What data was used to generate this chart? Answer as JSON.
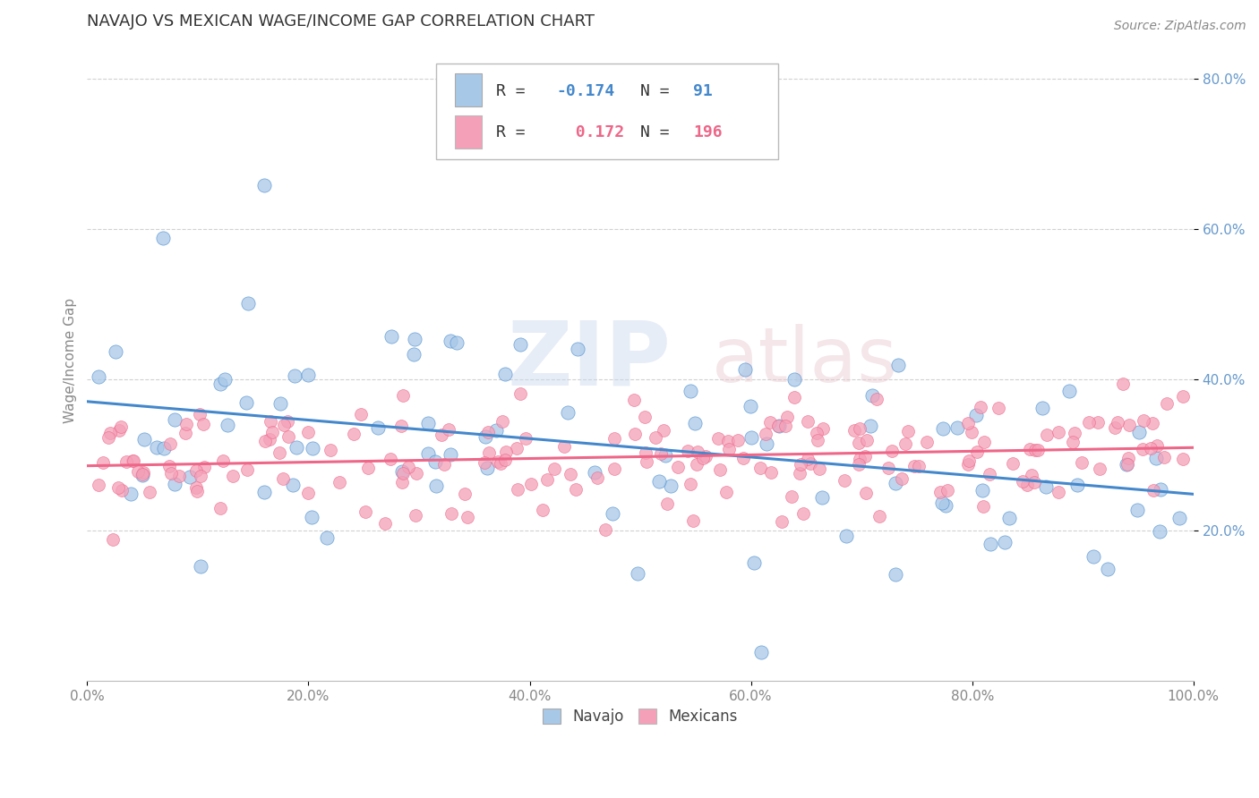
{
  "title": "NAVAJO VS MEXICAN WAGE/INCOME GAP CORRELATION CHART",
  "source_text": "Source: ZipAtlas.com",
  "ylabel": "Wage/Income Gap",
  "navajo_color": "#a8c8e8",
  "mexican_color": "#f4a0b8",
  "navajo_line_color": "#4488cc",
  "mexican_line_color": "#ee6688",
  "navajo_R": -0.174,
  "navajo_N": 91,
  "mexican_R": 0.172,
  "mexican_N": 196,
  "watermark_zip": "ZIP",
  "watermark_atlas": "atlas",
  "background_color": "#ffffff",
  "grid_color": "#cccccc",
  "ytick_color": "#6699cc",
  "xtick_color": "#888888"
}
